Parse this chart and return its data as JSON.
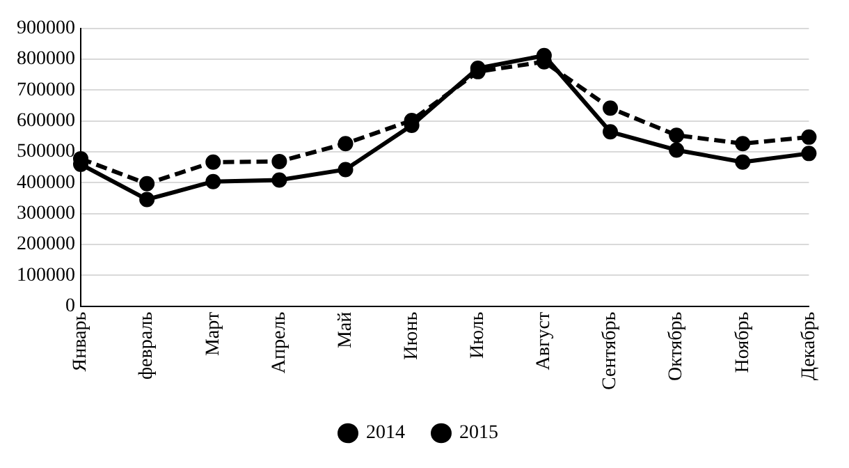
{
  "chart_data": {
    "type": "line",
    "categories": [
      "Январь",
      "февраль",
      "Март",
      "Апрель",
      "Май",
      "Июнь",
      "Июль",
      "Август",
      "Сентябрь",
      "Октябрь",
      "Ноябрь",
      "Декабрь"
    ],
    "series": [
      {
        "name": "2014",
        "color": "#000000",
        "line_style": "dashed",
        "values": [
          478000,
          397000,
          467000,
          469000,
          527000,
          602000,
          760000,
          792000,
          642000,
          554000,
          527000,
          548000
        ]
      },
      {
        "name": "2015",
        "color": "#000000",
        "line_style": "solid",
        "values": [
          460000,
          346000,
          404000,
          409000,
          443000,
          586000,
          771000,
          812000,
          565000,
          506000,
          467000,
          495000
        ]
      }
    ],
    "ylim": [
      0,
      900000
    ],
    "yticks": [
      0,
      100000,
      200000,
      300000,
      400000,
      500000,
      600000,
      700000,
      800000,
      900000
    ],
    "grid": "y",
    "legend": "bottom",
    "marker": "circle"
  }
}
